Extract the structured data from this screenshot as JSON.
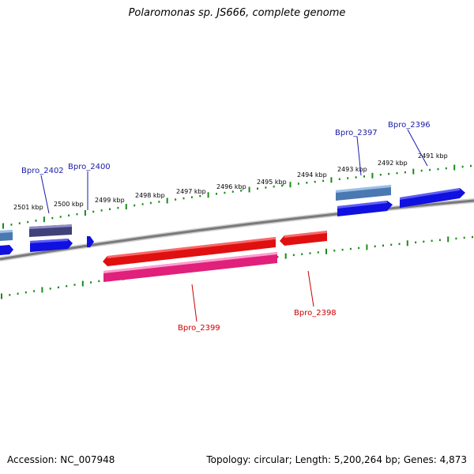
{
  "title": "Polaromonas sp. JS666, complete genome",
  "accession": "Accession: NC_007948",
  "stats": "Topology: circular; Length: 5,200,264 bp; Genes: 4,873",
  "colors": {
    "backbone": "#7a7a7a",
    "tick": "#1a8a1a",
    "forward_label": "#1a1aa8",
    "reverse_label": "#cc0000",
    "forward_cds": "#1010e0",
    "forward_gene_light": "#4a78b0",
    "forward_gene_dark": "#40407a",
    "reverse_cds": "#e01010",
    "reverse_gene": "#e0207a"
  },
  "ruler_labels": [
    "2501 kbp",
    "2500 kbp",
    "2499 kbp",
    "2498 kbp",
    "2497 kbp",
    "2496 kbp",
    "2495 kbp",
    "2494 kbp",
    "2493 kbp",
    "2492 kbp",
    "2491 kbp"
  ],
  "gene_labels": {
    "forward": [
      "Bpro_2402",
      "Bpro_2400",
      "Bpro_2397",
      "Bpro_2396"
    ],
    "reverse": [
      "Bpro_2399",
      "Bpro_2398"
    ]
  }
}
